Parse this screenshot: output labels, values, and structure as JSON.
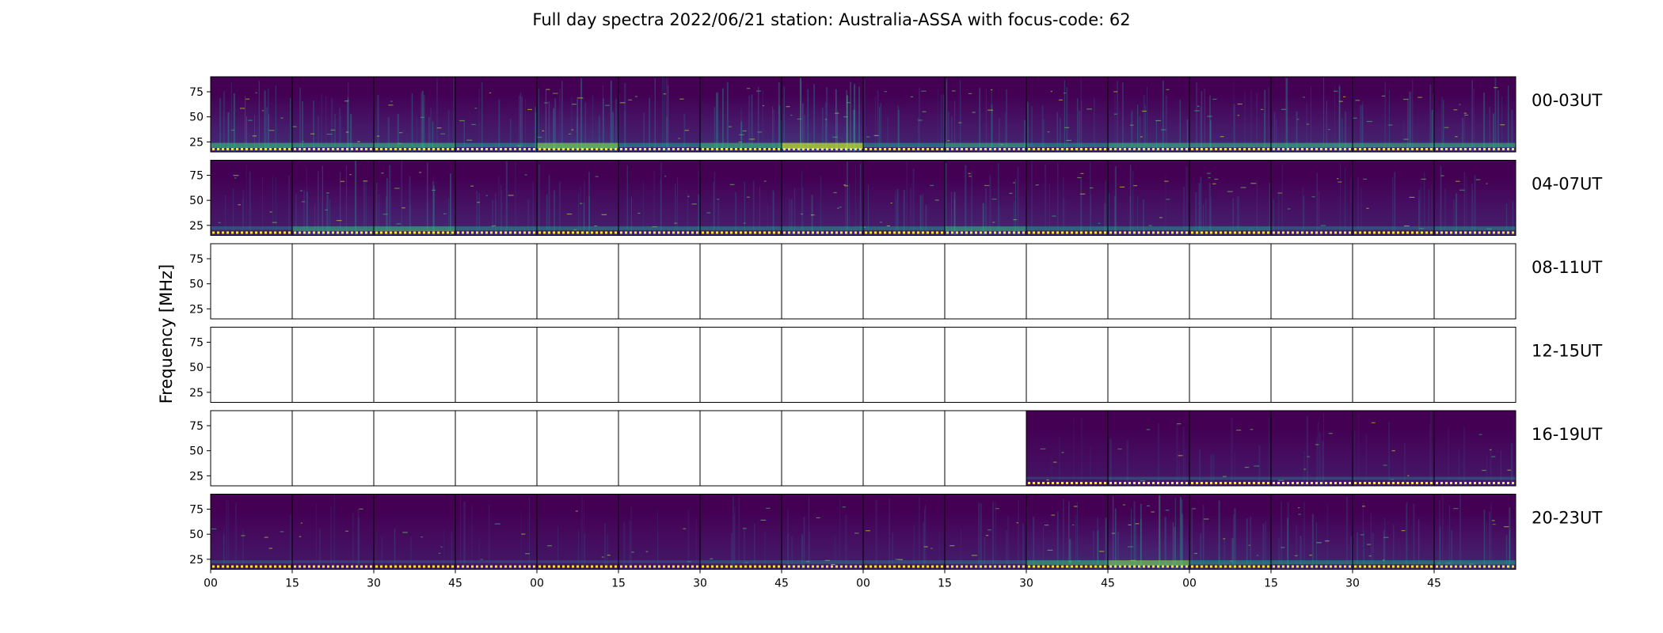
{
  "chart_data": {
    "type": "heatmap",
    "title": "Full day spectra 2022/06/21 station: Australia-ASSA with focus-code: 62",
    "ylabel": "Frequency [MHz]",
    "xlabel": "",
    "y_ticks": [
      "75",
      "50",
      "25"
    ],
    "y_tick_values": [
      75,
      50,
      25
    ],
    "ylim": [
      15,
      90
    ],
    "x_tick_labels": [
      "00",
      "15",
      "30",
      "45",
      "00",
      "15",
      "30",
      "45",
      "00",
      "15",
      "30",
      "45",
      "00",
      "15",
      "30",
      "45"
    ],
    "x_tick_minutes": [
      0,
      15,
      30,
      45,
      60,
      75,
      90,
      105,
      120,
      135,
      150,
      165,
      180,
      195,
      210,
      225
    ],
    "xlim_minutes": [
      0,
      240
    ],
    "panels_per_row": 16,
    "panel_duration_min": 15,
    "colormap": [
      "#440154",
      "#482878",
      "#3e4989",
      "#31688e",
      "#26828e",
      "#1f9e89",
      "#35b779",
      "#6ece58",
      "#b5de2b",
      "#fde725"
    ],
    "rows": [
      {
        "label": "00-03UT",
        "data_available": [
          true,
          true,
          true,
          true,
          true,
          true,
          true,
          true,
          true,
          true,
          true,
          true,
          true,
          true,
          true,
          true
        ],
        "activity": [
          0.55,
          0.45,
          0.5,
          0.4,
          0.7,
          0.4,
          0.55,
          0.75,
          0.4,
          0.45,
          0.4,
          0.5,
          0.45,
          0.5,
          0.45,
          0.45
        ]
      },
      {
        "label": "04-07UT",
        "data_available": [
          true,
          true,
          true,
          true,
          true,
          true,
          true,
          true,
          true,
          true,
          true,
          true,
          true,
          true,
          true,
          true
        ],
        "activity": [
          0.25,
          0.45,
          0.5,
          0.35,
          0.3,
          0.3,
          0.3,
          0.35,
          0.3,
          0.45,
          0.35,
          0.3,
          0.35,
          0.25,
          0.25,
          0.3
        ]
      },
      {
        "label": "08-11UT",
        "data_available": [
          false,
          false,
          false,
          false,
          false,
          false,
          false,
          false,
          false,
          false,
          false,
          false,
          false,
          false,
          false,
          false
        ],
        "activity": [
          0,
          0,
          0,
          0,
          0,
          0,
          0,
          0,
          0,
          0,
          0,
          0,
          0,
          0,
          0,
          0
        ]
      },
      {
        "label": "12-15UT",
        "data_available": [
          false,
          false,
          false,
          false,
          false,
          false,
          false,
          false,
          false,
          false,
          false,
          false,
          false,
          false,
          false,
          false
        ],
        "activity": [
          0,
          0,
          0,
          0,
          0,
          0,
          0,
          0,
          0,
          0,
          0,
          0,
          0,
          0,
          0,
          0
        ]
      },
      {
        "label": "16-19UT",
        "data_available": [
          false,
          false,
          false,
          false,
          false,
          false,
          false,
          false,
          false,
          false,
          true,
          true,
          true,
          true,
          true,
          true
        ],
        "activity": [
          0,
          0,
          0,
          0,
          0,
          0,
          0,
          0,
          0,
          0,
          0.05,
          0.15,
          0.15,
          0.15,
          0.15,
          0.15
        ]
      },
      {
        "label": "20-23UT",
        "data_available": [
          true,
          true,
          true,
          true,
          true,
          true,
          true,
          true,
          true,
          true,
          true,
          true,
          true,
          true,
          true,
          true
        ],
        "activity": [
          0.15,
          0.12,
          0.12,
          0.12,
          0.12,
          0.12,
          0.18,
          0.25,
          0.22,
          0.25,
          0.45,
          0.6,
          0.4,
          0.35,
          0.35,
          0.4
        ]
      }
    ]
  }
}
